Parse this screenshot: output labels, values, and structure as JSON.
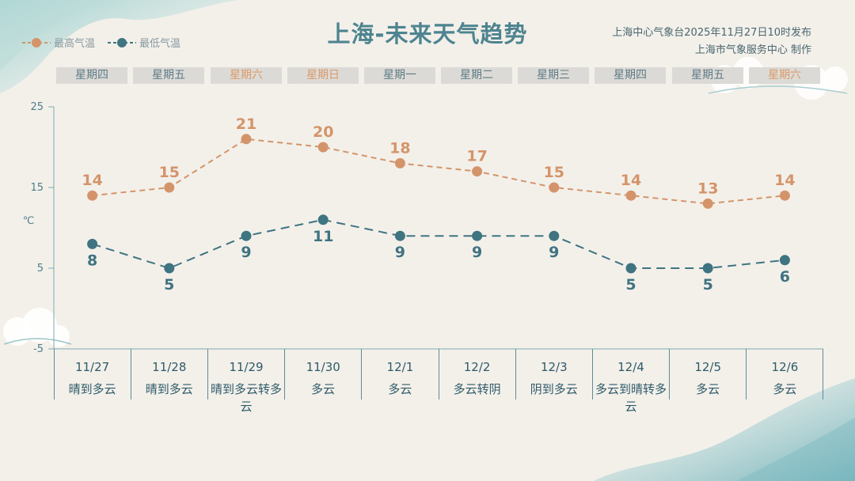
{
  "header": {
    "title": "上海-未来天气趋势",
    "publisher_line1": "上海中心气象台2025年11月27日10时发布",
    "publisher_line2": "上海市气象服务中心  制作"
  },
  "colors": {
    "high": "#d4946a",
    "low": "#3f7481",
    "axis": "#7fa8b3",
    "weekend": "#dc9a6a",
    "weekday": "#5d7a86"
  },
  "weekdays": [
    {
      "label": "星期四",
      "weekend": false
    },
    {
      "label": "星期五",
      "weekend": false
    },
    {
      "label": "星期六",
      "weekend": true
    },
    {
      "label": "星期日",
      "weekend": true
    },
    {
      "label": "星期一",
      "weekend": false
    },
    {
      "label": "星期二",
      "weekend": false
    },
    {
      "label": "星期三",
      "weekend": false
    },
    {
      "label": "星期四",
      "weekend": false
    },
    {
      "label": "星期五",
      "weekend": false
    },
    {
      "label": "星期六",
      "weekend": true
    }
  ],
  "chart_data": {
    "type": "line",
    "title": "上海-未来天气趋势",
    "ylabel": "℃",
    "ylim": [
      -5,
      25
    ],
    "yticks": [
      -5,
      5,
      15,
      25
    ],
    "grid": false,
    "legend_placement": "top-left",
    "categories": [
      "11/27",
      "11/28",
      "11/29",
      "11/30",
      "12/1",
      "12/2",
      "12/3",
      "12/4",
      "12/5",
      "12/6"
    ],
    "weather": [
      "晴到多云",
      "晴到多云",
      "晴到多云转多云",
      "多云",
      "多云",
      "多云转阴",
      "阴到多云",
      "多云到晴转多云",
      "多云",
      "多云"
    ],
    "series": [
      {
        "name": "最高气温",
        "values": [
          14,
          15,
          21,
          20,
          18,
          17,
          15,
          14,
          13,
          14
        ]
      },
      {
        "name": "最低气温",
        "values": [
          8,
          5,
          9,
          11,
          9,
          9,
          9,
          5,
          5,
          6
        ]
      }
    ]
  }
}
